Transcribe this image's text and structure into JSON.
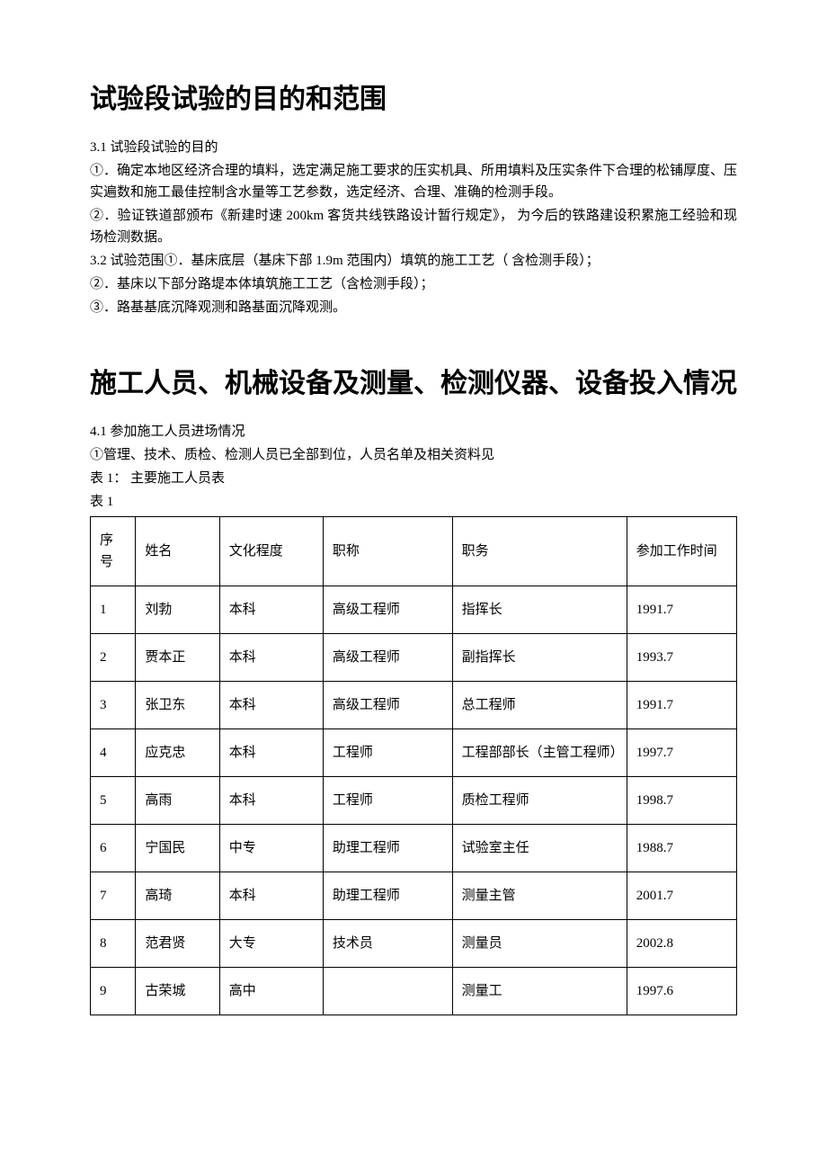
{
  "section1": {
    "heading": "试验段试验的目的和范围",
    "sub1_label": "3.1 试验段试验的目的",
    "p1": "①．确定本地区经济合理的填料，选定满足施工要求的压实机具、所用填料及压实条件下合理的松铺厚度、压实遍数和施工最佳控制含水量等工艺参数，选定经济、合理、准确的检测手段。",
    "p2": "②．验证铁道部颁布《新建时速 200km 客货共线铁路设计暂行规定》， 为今后的铁路建设积累施工经验和现场检测数据。",
    "p3": "3.2 试验范围①．基床底层（基床下部 1.9m 范围内）填筑的施工工艺（ 含检测手段）；",
    "p4": "②．基床以下部分路堤本体填筑施工工艺（含检测手段）；",
    "p5": "③．路基基底沉降观测和路基面沉降观测。"
  },
  "section2": {
    "heading": "施工人员、机械设备及测量、检测仪器、设备投入情况",
    "sub_label": "4.1 参加施工人员进场情况",
    "intro1": "①管理、技术、质检、检测人员已全部到位，人员名单及相关资料见",
    "intro2": "表 1：  主要施工人员表",
    "intro3": "表 1"
  },
  "table": {
    "headers": {
      "idx": "序号",
      "name": "姓名",
      "edu": "文化程度",
      "title": "职称",
      "role": "职务",
      "date": "参加工作时间"
    },
    "rows": [
      {
        "idx": "1",
        "name": "刘勃",
        "edu": "本科",
        "title": "高级工程师",
        "role": "指挥长",
        "date": "1991.7"
      },
      {
        "idx": "2",
        "name": "贾本正",
        "edu": "本科",
        "title": "高级工程师",
        "role": "副指挥长",
        "date": "1993.7"
      },
      {
        "idx": "3",
        "name": "张卫东",
        "edu": "本科",
        "title": "高级工程师",
        "role": "总工程师",
        "date": "1991.7"
      },
      {
        "idx": "4",
        "name": "应克忠",
        "edu": "本科",
        "title": "工程师",
        "role": "工程部部长（主管工程师）",
        "date": "1997.7"
      },
      {
        "idx": "5",
        "name": "高雨",
        "edu": "本科",
        "title": "工程师",
        "role": "质检工程师",
        "date": "1998.7"
      },
      {
        "idx": "6",
        "name": "宁国民",
        "edu": "中专",
        "title": "助理工程师",
        "role": "试验室主任",
        "date": "1988.7"
      },
      {
        "idx": "7",
        "name": "高琦",
        "edu": "本科",
        "title": "助理工程师",
        "role": "测量主管",
        "date": "2001.7"
      },
      {
        "idx": "8",
        "name": "范君贤",
        "edu": "大专",
        "title": "技术员",
        "role": "测量员",
        "date": "2002.8"
      },
      {
        "idx": "9",
        "name": "古荣城",
        "edu": "高中",
        "title": "",
        "role": "测量工",
        "date": "1997.6"
      }
    ]
  }
}
